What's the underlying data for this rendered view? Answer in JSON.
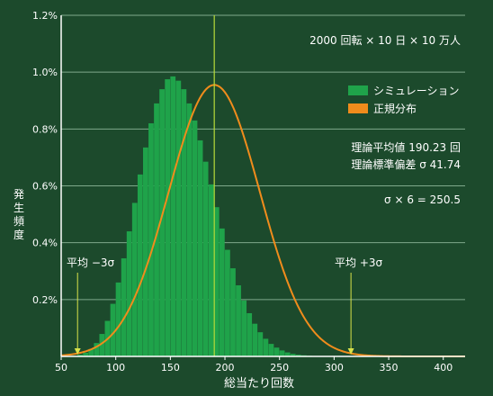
{
  "chart_data": {
    "type": "bar",
    "title": "",
    "xlabel": "総当たり回数",
    "ylabel": "発生頻度",
    "xlim": [
      50,
      420
    ],
    "ylim": [
      0,
      1.2
    ],
    "x_ticks": [
      "50",
      "100",
      "150",
      "200",
      "250",
      "300",
      "350",
      "400"
    ],
    "x_tick_values": [
      50,
      100,
      150,
      200,
      250,
      300,
      350,
      400
    ],
    "y_ticks": [
      "0.2%",
      "0.4%",
      "0.6%",
      "0.8%",
      "1.0%",
      "1.2%"
    ],
    "y_tick_values": [
      0.2,
      0.4,
      0.6,
      0.8,
      1.0,
      1.2
    ],
    "grid": "horizontal",
    "legend_position": "right",
    "series": [
      {
        "name": "シミュレーション",
        "kind": "histogram",
        "color": "#1fa34a",
        "x_start": 60,
        "x_step": 5,
        "values": [
          0.002,
          0.006,
          0.013,
          0.026,
          0.047,
          0.079,
          0.125,
          0.185,
          0.26,
          0.345,
          0.44,
          0.54,
          0.64,
          0.735,
          0.82,
          0.89,
          0.94,
          0.975,
          0.985,
          0.97,
          0.94,
          0.89,
          0.83,
          0.76,
          0.685,
          0.605,
          0.525,
          0.45,
          0.375,
          0.31,
          0.25,
          0.197,
          0.152,
          0.115,
          0.085,
          0.062,
          0.044,
          0.031,
          0.021,
          0.014,
          0.009,
          0.006,
          0.004,
          0.0025,
          0.0015,
          0.001,
          0.0006,
          0.0004,
          0.0002,
          0.0001
        ]
      },
      {
        "name": "正規分布",
        "kind": "normal-curve",
        "color": "#f08c1c",
        "mean": 190.23,
        "sd": 41.74,
        "peak": 0.955
      }
    ],
    "reference_lines": [
      {
        "x": 190.23,
        "label": ""
      },
      {
        "x": 65.01,
        "label": "平均 −3σ"
      },
      {
        "x": 315.45,
        "label": "平均 +3σ"
      }
    ],
    "annotations": {
      "setup": "2000 回転 × 10 日 × 10 万人",
      "theory_mean": "理論平均値 190.23 回",
      "theory_sd": "理論標準偏差 σ 41.74",
      "six_sigma": "σ × 6 = 250.5"
    }
  }
}
